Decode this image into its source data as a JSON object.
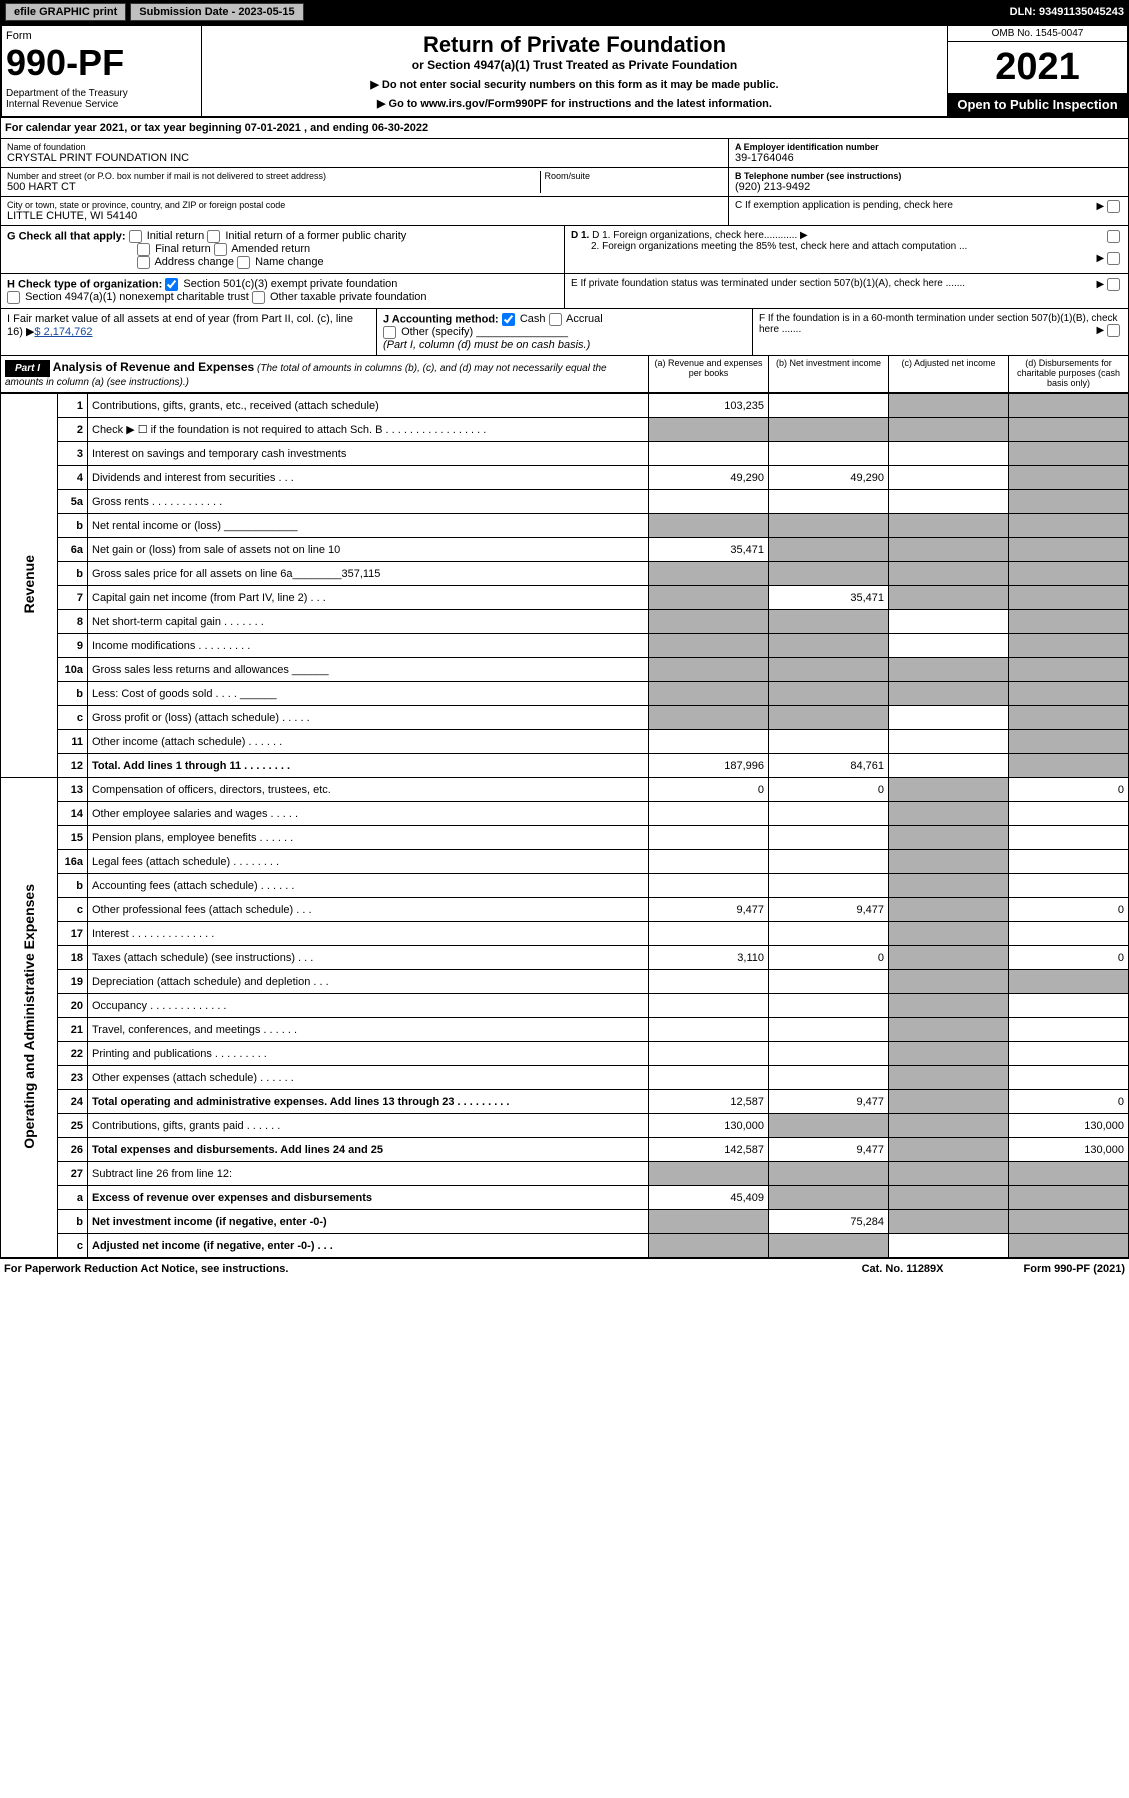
{
  "top": {
    "efile": "efile GRAPHIC print",
    "submission": "Submission Date - 2023-05-15",
    "dln": "DLN: 93491135045243"
  },
  "header": {
    "form": "Form",
    "formNo": "990-PF",
    "dept": "Department of the Treasury\nInternal Revenue Service",
    "title": "Return of Private Foundation",
    "subtitle": "or Section 4947(a)(1) Trust Treated as Private Foundation",
    "note1": "▶ Do not enter social security numbers on this form as it may be made public.",
    "note2": "▶ Go to www.irs.gov/Form990PF for instructions and the latest information.",
    "omb": "OMB No. 1545-0047",
    "year": "2021",
    "open": "Open to Public Inspection"
  },
  "calYear": "For calendar year 2021, or tax year beginning 07-01-2021                         , and ending 06-30-2022",
  "foundation": {
    "nameLabel": "Name of foundation",
    "name": "CRYSTAL PRINT FOUNDATION INC",
    "addrLabel": "Number and street (or P.O. box number if mail is not delivered to street address)",
    "addr": "500 HART CT",
    "roomLabel": "Room/suite",
    "cityLabel": "City or town, state or province, country, and ZIP or foreign postal code",
    "city": "LITTLE CHUTE, WI  54140",
    "einLabel": "A Employer identification number",
    "ein": "39-1764046",
    "phoneLabel": "B Telephone number (see instructions)",
    "phone": "(920) 213-9492",
    "cLabel": "C If exemption application is pending, check here",
    "d1": "D 1. Foreign organizations, check here............",
    "d2": "2. Foreign organizations meeting the 85% test, check here and attach computation ...",
    "e": "E If private foundation status was terminated under section 507(b)(1)(A), check here .......",
    "f": "F If the foundation is in a 60-month termination under section 507(b)(1)(B), check here .......",
    "gLabel": "G Check all that apply:",
    "gOpts": [
      "Initial return",
      "Initial return of a former public charity",
      "Final return",
      "Amended return",
      "Address change",
      "Name change"
    ],
    "hLabel": "H Check type of organization:",
    "hOpts": [
      "Section 501(c)(3) exempt private foundation",
      "Section 4947(a)(1) nonexempt charitable trust",
      "Other taxable private foundation"
    ],
    "iLabel": "I Fair market value of all assets at end of year (from Part II, col. (c), line 16)",
    "iVal": "$  2,174,762",
    "jLabel": "J Accounting method:",
    "jCash": "Cash",
    "jAccrual": "Accrual",
    "jOther": "Other (specify)",
    "jNote": "(Part I, column (d) must be on cash basis.)"
  },
  "part1": {
    "label": "Part I",
    "title": "Analysis of Revenue and Expenses",
    "titleNote": "(The total of amounts in columns (b), (c), and (d) may not necessarily equal the amounts in column (a) (see instructions).)",
    "colA": "(a)   Revenue and expenses per books",
    "colB": "(b)   Net investment income",
    "colC": "(c)   Adjusted net income",
    "colD": "(d)   Disbursements for charitable purposes (cash basis only)"
  },
  "sides": {
    "rev": "Revenue",
    "exp": "Operating and Administrative Expenses"
  },
  "rows": [
    {
      "n": "1",
      "l": "Contributions, gifts, grants, etc., received (attach schedule)",
      "a": "103,235",
      "b": "",
      "c": "g",
      "d": "g"
    },
    {
      "n": "2",
      "l": "Check ▶ ☐ if the foundation is not required to attach Sch. B   .  .  .  .  .  .  .  .  .  .  .  .  .  .  .  .  .",
      "a": "g",
      "b": "g",
      "c": "g",
      "d": "g"
    },
    {
      "n": "3",
      "l": "Interest on savings and temporary cash investments",
      "a": "",
      "b": "",
      "c": "",
      "d": "g"
    },
    {
      "n": "4",
      "l": "Dividends and interest from securities    .   .   .",
      "a": "49,290",
      "b": "49,290",
      "c": "",
      "d": "g"
    },
    {
      "n": "5a",
      "l": "Gross rents    .   .   .   .   .   .   .   .   .   .   .   .",
      "a": "",
      "b": "",
      "c": "",
      "d": "g"
    },
    {
      "n": "b",
      "l": "Net rental income or (loss)   ____________",
      "a": "g",
      "b": "g",
      "c": "g",
      "d": "g"
    },
    {
      "n": "6a",
      "l": "Net gain or (loss) from sale of assets not on line 10",
      "a": "35,471",
      "b": "g",
      "c": "g",
      "d": "g"
    },
    {
      "n": "b",
      "l": "Gross sales price for all assets on line 6a________357,115",
      "a": "g",
      "b": "g",
      "c": "g",
      "d": "g"
    },
    {
      "n": "7",
      "l": "Capital gain net income (from Part IV, line 2)   .   .   .",
      "a": "g",
      "b": "35,471",
      "c": "g",
      "d": "g"
    },
    {
      "n": "8",
      "l": "Net short-term capital gain   .   .   .   .   .   .   .",
      "a": "g",
      "b": "g",
      "c": "",
      "d": "g"
    },
    {
      "n": "9",
      "l": "Income modifications   .   .   .   .   .   .   .   .   .",
      "a": "g",
      "b": "g",
      "c": "",
      "d": "g"
    },
    {
      "n": "10a",
      "l": "Gross sales less returns and allowances   ______",
      "a": "g",
      "b": "g",
      "c": "g",
      "d": "g"
    },
    {
      "n": "b",
      "l": "Less: Cost of goods sold    .   .   .   .   ______",
      "a": "g",
      "b": "g",
      "c": "g",
      "d": "g"
    },
    {
      "n": "c",
      "l": "Gross profit or (loss) (attach schedule)    .   .   .   .   .",
      "a": "g",
      "b": "g",
      "c": "",
      "d": "g"
    },
    {
      "n": "11",
      "l": "Other income (attach schedule)    .   .   .   .   .   .",
      "a": "",
      "b": "",
      "c": "",
      "d": "g"
    },
    {
      "n": "12",
      "l": "Total. Add lines 1 through 11   .   .   .   .   .   .   .   .",
      "a": "187,996",
      "b": "84,761",
      "c": "",
      "d": "g",
      "bold": true
    },
    {
      "n": "13",
      "l": "Compensation of officers, directors, trustees, etc.",
      "a": "0",
      "b": "0",
      "c": "g",
      "d": "0"
    },
    {
      "n": "14",
      "l": "Other employee salaries and wages    .   .   .   .   .",
      "a": "",
      "b": "",
      "c": "g",
      "d": ""
    },
    {
      "n": "15",
      "l": "Pension plans, employee benefits   .   .   .   .   .   .",
      "a": "",
      "b": "",
      "c": "g",
      "d": ""
    },
    {
      "n": "16a",
      "l": "Legal fees (attach schedule)   .   .   .   .   .   .   .   .",
      "a": "",
      "b": "",
      "c": "g",
      "d": ""
    },
    {
      "n": "b",
      "l": "Accounting fees (attach schedule)   .   .   .   .   .   .",
      "a": "",
      "b": "",
      "c": "g",
      "d": ""
    },
    {
      "n": "c",
      "l": "Other professional fees (attach schedule)    .   .   .",
      "a": "9,477",
      "b": "9,477",
      "c": "g",
      "d": "0"
    },
    {
      "n": "17",
      "l": "Interest   .   .   .   .   .   .   .   .   .   .   .   .   .   .",
      "a": "",
      "b": "",
      "c": "g",
      "d": ""
    },
    {
      "n": "18",
      "l": "Taxes (attach schedule) (see instructions)    .   .   .",
      "a": "3,110",
      "b": "0",
      "c": "g",
      "d": "0"
    },
    {
      "n": "19",
      "l": "Depreciation (attach schedule) and depletion    .   .   .",
      "a": "",
      "b": "",
      "c": "g",
      "d": "g"
    },
    {
      "n": "20",
      "l": "Occupancy   .   .   .   .   .   .   .   .   .   .   .   .   .",
      "a": "",
      "b": "",
      "c": "g",
      "d": ""
    },
    {
      "n": "21",
      "l": "Travel, conferences, and meetings   .   .   .   .   .   .",
      "a": "",
      "b": "",
      "c": "g",
      "d": ""
    },
    {
      "n": "22",
      "l": "Printing and publications   .   .   .   .   .   .   .   .   .",
      "a": "",
      "b": "",
      "c": "g",
      "d": ""
    },
    {
      "n": "23",
      "l": "Other expenses (attach schedule)   .   .   .   .   .   .",
      "a": "",
      "b": "",
      "c": "g",
      "d": ""
    },
    {
      "n": "24",
      "l": "Total operating and administrative expenses. Add lines 13 through 23   .   .   .   .   .   .   .   .   .",
      "a": "12,587",
      "b": "9,477",
      "c": "g",
      "d": "0",
      "bold": true
    },
    {
      "n": "25",
      "l": "Contributions, gifts, grants paid    .   .   .   .   .   .",
      "a": "130,000",
      "b": "g",
      "c": "g",
      "d": "130,000"
    },
    {
      "n": "26",
      "l": "Total expenses and disbursements. Add lines 24 and 25",
      "a": "142,587",
      "b": "9,477",
      "c": "g",
      "d": "130,000",
      "bold": true
    },
    {
      "n": "27",
      "l": "Subtract line 26 from line 12:",
      "a": "g",
      "b": "g",
      "c": "g",
      "d": "g"
    },
    {
      "n": "a",
      "l": "Excess of revenue over expenses and disbursements",
      "a": "45,409",
      "b": "g",
      "c": "g",
      "d": "g",
      "bold": true
    },
    {
      "n": "b",
      "l": "Net investment income (if negative, enter -0-)",
      "a": "g",
      "b": "75,284",
      "c": "g",
      "d": "g",
      "bold": true
    },
    {
      "n": "c",
      "l": "Adjusted net income (if negative, enter -0-)   .   .   .",
      "a": "g",
      "b": "g",
      "c": "",
      "d": "g",
      "bold": true
    }
  ],
  "footer": {
    "left": "For Paperwork Reduction Act Notice, see instructions.",
    "mid": "Cat. No. 11289X",
    "right": "Form 990-PF (2021)"
  }
}
